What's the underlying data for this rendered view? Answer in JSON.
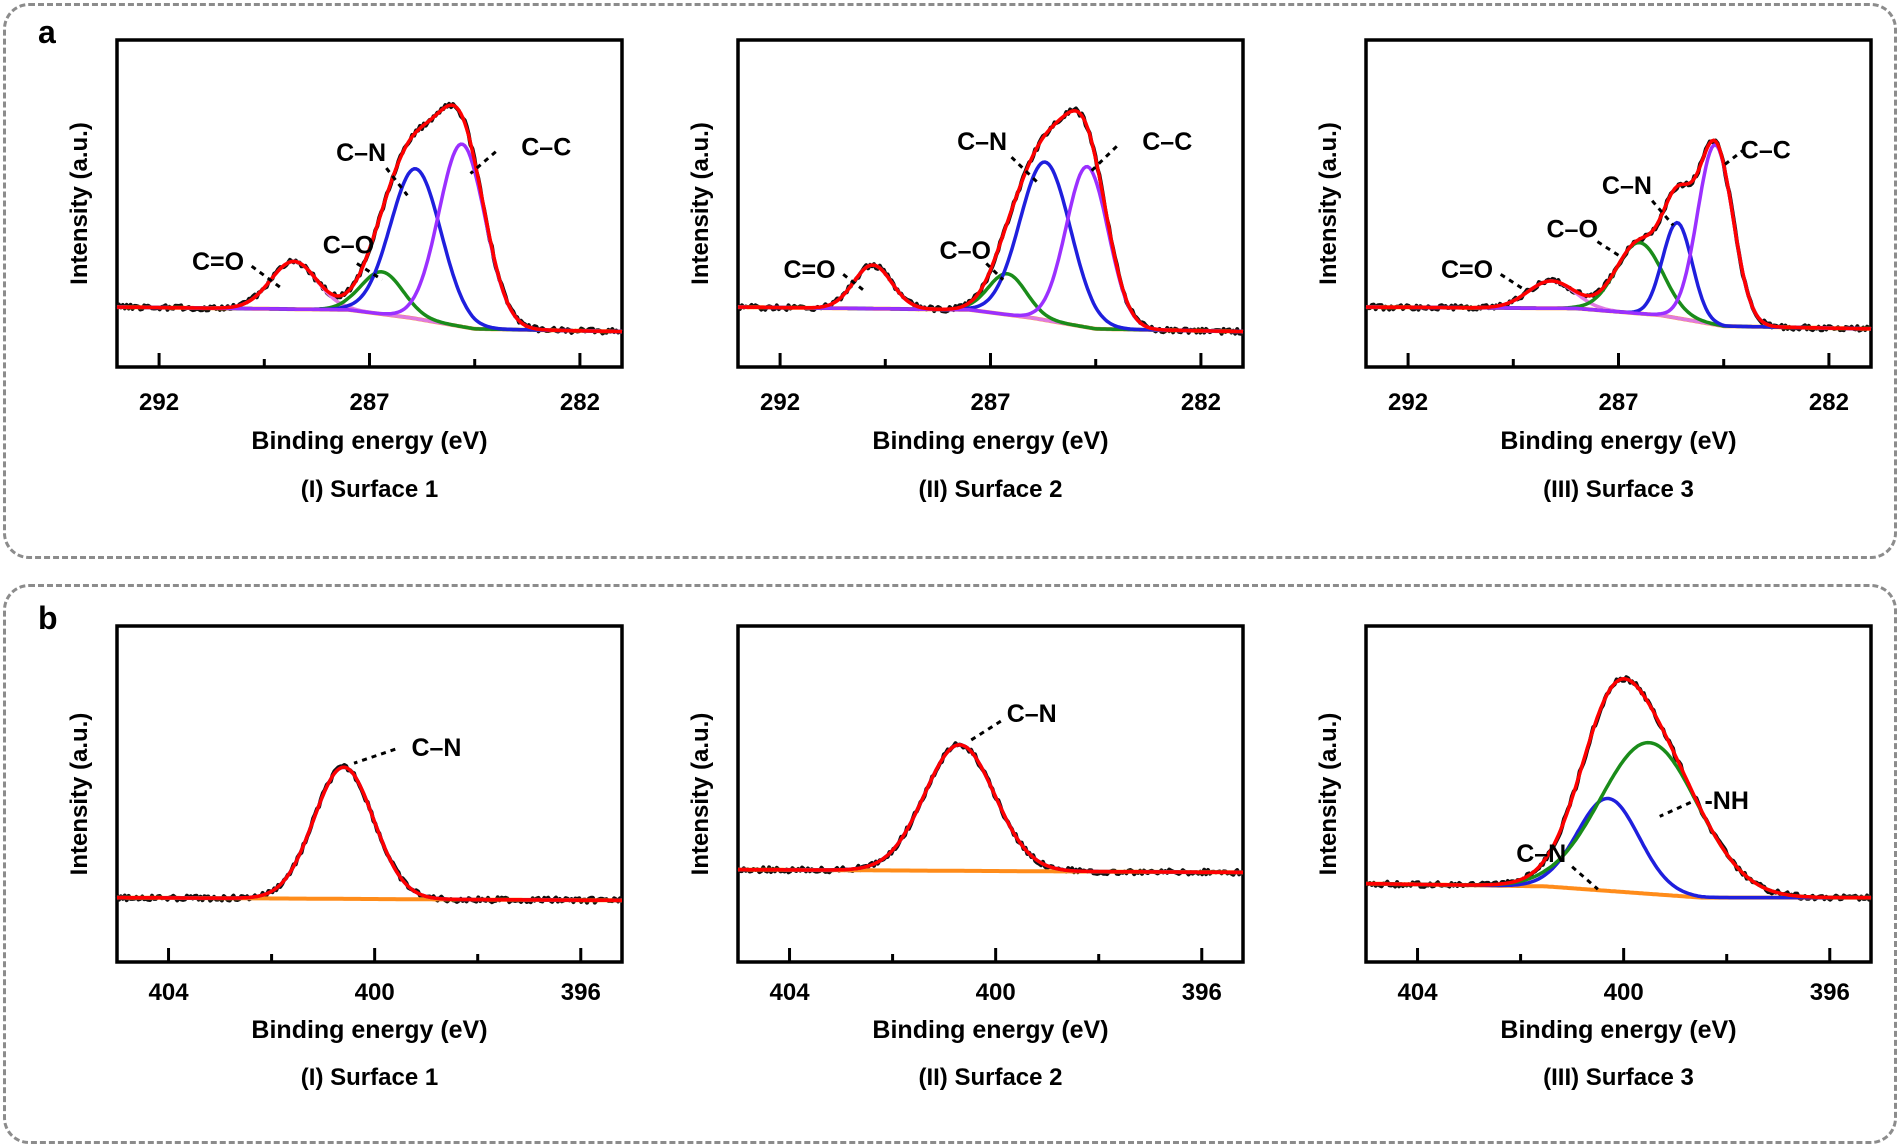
{
  "panels": [
    {
      "letter": "a"
    },
    {
      "letter": "b"
    }
  ],
  "colors": {
    "raw": "#111111",
    "envelope": "#ff0000",
    "baseline": "#ff8c1a",
    "CC": "#9b30ff",
    "CN": "#1f1fdd",
    "CO": "#1a8c1a",
    "C=O": "#e07ae0",
    "NH": "#1a8c1a",
    "frame": "#8c8c8c"
  },
  "chart_data": [
    {
      "id": "a1",
      "row": "a",
      "col": 0,
      "type": "line",
      "title": "(I) Surface 1",
      "xlabel": "Binding energy (eV)",
      "ylabel": "Intensity (a.u.)",
      "xlim": [
        293,
        281
      ],
      "ylim": [
        0,
        1.2
      ],
      "xticks": [
        292,
        287,
        282
      ],
      "minor_xticks": [
        289.5,
        284.5
      ],
      "baseline": [
        [
          293,
          0.22
        ],
        [
          287.5,
          0.21
        ],
        [
          286,
          0.18
        ],
        [
          284.5,
          0.14
        ],
        [
          281,
          0.13
        ]
      ],
      "series": [
        {
          "name": "C=O",
          "key": "C=O",
          "center": 288.8,
          "height": 0.175,
          "sigma": 0.55
        },
        {
          "name": "C–O",
          "key": "CO",
          "center": 286.7,
          "height": 0.155,
          "sigma": 0.5
        },
        {
          "name": "C–N",
          "key": "CN",
          "center": 285.9,
          "height": 0.55,
          "sigma": 0.6
        },
        {
          "name": "C–C",
          "key": "CC",
          "center": 284.8,
          "height": 0.67,
          "sigma": 0.55
        }
      ],
      "labels": [
        {
          "text": "C=O",
          "x": 290.6,
          "y": 0.38,
          "lx1": 289.8,
          "ly1": 0.37,
          "lx2": 289.1,
          "ly2": 0.29
        },
        {
          "text": "C–O",
          "x": 287.5,
          "y": 0.44,
          "lx1": 287.3,
          "ly1": 0.38,
          "lx2": 286.7,
          "ly2": 0.32
        },
        {
          "text": "C–N",
          "x": 287.2,
          "y": 0.78,
          "lx1": 286.6,
          "ly1": 0.73,
          "lx2": 286.1,
          "ly2": 0.63
        },
        {
          "text": "C–C",
          "x": 282.8,
          "y": 0.8,
          "lx1": 284.0,
          "ly1": 0.79,
          "lx2": 284.6,
          "ly2": 0.71
        }
      ]
    },
    {
      "id": "a2",
      "row": "a",
      "col": 1,
      "type": "line",
      "title": "(II) Surface 2",
      "xlabel": "Binding energy (eV)",
      "ylabel": "Intensity (a.u.)",
      "xlim": [
        293,
        281
      ],
      "ylim": [
        0,
        1.2
      ],
      "xticks": [
        292,
        287,
        282
      ],
      "minor_xticks": [
        289.5,
        284.5
      ],
      "baseline": [
        [
          293,
          0.22
        ],
        [
          287.5,
          0.21
        ],
        [
          286,
          0.18
        ],
        [
          284.5,
          0.14
        ],
        [
          281,
          0.13
        ]
      ],
      "series": [
        {
          "name": "C=O",
          "key": "C=O",
          "center": 289.8,
          "height": 0.16,
          "sigma": 0.45
        },
        {
          "name": "C–O",
          "key": "CO",
          "center": 286.6,
          "height": 0.15,
          "sigma": 0.45
        },
        {
          "name": "C–N",
          "key": "CN",
          "center": 285.7,
          "height": 0.58,
          "sigma": 0.6
        },
        {
          "name": "C–C",
          "key": "CC",
          "center": 284.7,
          "height": 0.59,
          "sigma": 0.5
        }
      ],
      "labels": [
        {
          "text": "C=O",
          "x": 291.3,
          "y": 0.35,
          "lx1": 290.5,
          "ly1": 0.34,
          "lx2": 290.0,
          "ly2": 0.28
        },
        {
          "text": "C–O",
          "x": 287.6,
          "y": 0.42,
          "lx1": 287.1,
          "ly1": 0.38,
          "lx2": 286.7,
          "ly2": 0.32
        },
        {
          "text": "C–N",
          "x": 287.2,
          "y": 0.82,
          "lx1": 286.5,
          "ly1": 0.77,
          "lx2": 285.9,
          "ly2": 0.68
        },
        {
          "text": "C–C",
          "x": 282.8,
          "y": 0.82,
          "lx1": 284.0,
          "ly1": 0.81,
          "lx2": 284.6,
          "ly2": 0.72
        }
      ]
    },
    {
      "id": "a3",
      "row": "a",
      "col": 2,
      "type": "line",
      "title": "(III) Surface 3",
      "xlabel": "Binding energy (eV)",
      "ylabel": "Intensity (a.u.)",
      "xlim": [
        293,
        281
      ],
      "ylim": [
        0,
        1.2
      ],
      "xticks": [
        292,
        287,
        282
      ],
      "minor_xticks": [
        289.5,
        284.5
      ],
      "baseline": [
        [
          293,
          0.22
        ],
        [
          288,
          0.215
        ],
        [
          286,
          0.19
        ],
        [
          284.5,
          0.15
        ],
        [
          281,
          0.14
        ]
      ],
      "series": [
        {
          "name": "C=O",
          "key": "C=O",
          "center": 288.6,
          "height": 0.1,
          "sigma": 0.55
        },
        {
          "name": "C–O",
          "key": "CO",
          "center": 286.5,
          "height": 0.26,
          "sigma": 0.55
        },
        {
          "name": "C–N",
          "key": "CN",
          "center": 285.6,
          "height": 0.35,
          "sigma": 0.35
        },
        {
          "name": "C–C",
          "key": "CC",
          "center": 284.7,
          "height": 0.66,
          "sigma": 0.42
        }
      ],
      "labels": [
        {
          "text": "C=O",
          "x": 290.6,
          "y": 0.35,
          "lx1": 289.8,
          "ly1": 0.34,
          "lx2": 289.2,
          "ly2": 0.28
        },
        {
          "text": "C–O",
          "x": 288.1,
          "y": 0.5,
          "lx1": 287.5,
          "ly1": 0.46,
          "lx2": 286.9,
          "ly2": 0.4
        },
        {
          "text": "C–N",
          "x": 286.8,
          "y": 0.66,
          "lx1": 286.2,
          "ly1": 0.61,
          "lx2": 285.7,
          "ly2": 0.52
        },
        {
          "text": "C–C",
          "x": 283.5,
          "y": 0.79,
          "lx1": 284.0,
          "ly1": 0.8,
          "lx2": 284.5,
          "ly2": 0.74
        }
      ]
    },
    {
      "id": "b1",
      "row": "b",
      "col": 0,
      "type": "line",
      "title": "(I) Surface 1",
      "xlabel": "Binding energy (eV)",
      "ylabel": "Intensity (a.u.)",
      "xlim": [
        405,
        395.2
      ],
      "ylim": [
        0,
        1.2
      ],
      "xticks": [
        404,
        400,
        396
      ],
      "minor_xticks": [
        402,
        398
      ],
      "baseline": [
        [
          405,
          0.23
        ],
        [
          395.2,
          0.22
        ]
      ],
      "series": [
        {
          "name": "C–N",
          "key": "CN",
          "center": 400.6,
          "height": 0.47,
          "sigma": 0.58
        }
      ],
      "labels": [
        {
          "text": "C–N",
          "x": 398.8,
          "y": 0.76,
          "lx1": 399.6,
          "ly1": 0.76,
          "lx2": 400.4,
          "ly2": 0.71
        }
      ]
    },
    {
      "id": "b2",
      "row": "b",
      "col": 1,
      "type": "line",
      "title": "(II) Surface 2",
      "xlabel": "Binding energy (eV)",
      "ylabel": "Intensity (a.u.)",
      "xlim": [
        405,
        395.2
      ],
      "ylim": [
        0,
        1.2
      ],
      "xticks": [
        404,
        400,
        396
      ],
      "minor_xticks": [
        402,
        398
      ],
      "baseline": [
        [
          405,
          0.33
        ],
        [
          395.2,
          0.32
        ]
      ],
      "series": [
        {
          "name": "C–N",
          "key": "CN",
          "center": 400.7,
          "height": 0.45,
          "sigma": 0.68
        }
      ],
      "labels": [
        {
          "text": "C–N",
          "x": 399.3,
          "y": 0.88,
          "lx1": 399.9,
          "ly1": 0.86,
          "lx2": 400.5,
          "ly2": 0.79
        }
      ]
    },
    {
      "id": "b3",
      "row": "b",
      "col": 2,
      "type": "line",
      "title": "(III) Surface 3",
      "xlabel": "Binding energy (eV)",
      "ylabel": "Intensity (a.u.)",
      "xlim": [
        405,
        395.2
      ],
      "ylim": [
        0,
        1.2
      ],
      "xticks": [
        404,
        400,
        396
      ],
      "minor_xticks": [
        402,
        398
      ],
      "baseline": [
        [
          405,
          0.28
        ],
        [
          401.5,
          0.27
        ],
        [
          400,
          0.25
        ],
        [
          398.5,
          0.23
        ],
        [
          395.2,
          0.23
        ]
      ],
      "series": [
        {
          "name": "C–N",
          "key": "CN",
          "center": 400.3,
          "height": 0.33,
          "sigma": 0.6
        },
        {
          "name": "-NH",
          "key": "NH",
          "center": 399.5,
          "height": 0.54,
          "sigma": 0.95
        }
      ],
      "labels": [
        {
          "text": "C–N",
          "x": 401.6,
          "y": 0.38,
          "lx1": 401.0,
          "ly1": 0.34,
          "lx2": 400.5,
          "ly2": 0.26
        },
        {
          "text": "-NH",
          "x": 398.0,
          "y": 0.57,
          "lx1": 398.7,
          "ly1": 0.57,
          "lx2": 399.3,
          "ly2": 0.52
        }
      ]
    }
  ]
}
